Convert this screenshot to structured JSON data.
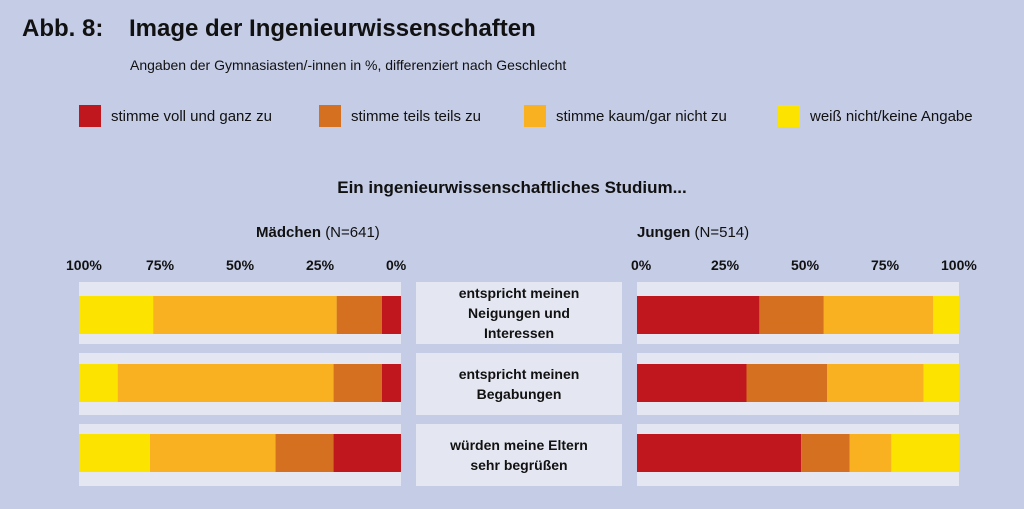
{
  "header": {
    "figure_label": "Abb. 8:",
    "title": "Image der Ingenieurwissenschaften",
    "subtitle": "Angaben der Gymnasiasten/-innen in %, differenziert nach Geschlecht"
  },
  "chart_data": {
    "type": "bar",
    "orientation": "horizontal",
    "stacked": true,
    "title": "Ein ingenieurwissenschaftliches Studium...",
    "categories": [
      "entspricht meinen\nNeigungen und\nInteressen",
      "entspricht meinen\nBegabungen",
      "würden meine Eltern\nsehr begrüßen"
    ],
    "legend": {
      "position": "top",
      "entries": [
        {
          "label": "stimme voll und ganz zu",
          "color": "#c0171f"
        },
        {
          "label": "stimme teils teils zu",
          "color": "#d57020"
        },
        {
          "label": "stimme kaum/gar nicht zu",
          "color": "#f9b121"
        },
        {
          "label": "weiß nicht/keine Angabe",
          "color": "#fde300"
        }
      ]
    },
    "groups": [
      {
        "name": "Mädchen",
        "n_label": "(N=641)",
        "direction": "right-to-left",
        "ticks": [
          "100%",
          "75%",
          "50%",
          "25%",
          "0%"
        ],
        "series": [
          {
            "name": "stimme voll und ganz zu",
            "values": [
              6,
              6,
              21
            ]
          },
          {
            "name": "stimme teils teils zu",
            "values": [
              14,
              15,
              18
            ]
          },
          {
            "name": "stimme kaum/gar nicht zu",
            "values": [
              57,
              67,
              39
            ]
          },
          {
            "name": "weiß nicht/keine Angabe",
            "values": [
              23,
              12,
              22
            ]
          }
        ]
      },
      {
        "name": "Jungen",
        "n_label": "(N=514)",
        "direction": "left-to-right",
        "ticks": [
          "0%",
          "25%",
          "50%",
          "75%",
          "100%"
        ],
        "series": [
          {
            "name": "stimme voll und ganz zu",
            "values": [
              38,
              34,
              51
            ]
          },
          {
            "name": "stimme teils teils zu",
            "values": [
              20,
              25,
              15
            ]
          },
          {
            "name": "stimme kaum/gar nicht zu",
            "values": [
              34,
              30,
              13
            ]
          },
          {
            "name": "weiß nicht/keine Angabe",
            "values": [
              8,
              11,
              21
            ]
          }
        ]
      }
    ],
    "xlim": [
      0,
      100
    ]
  }
}
